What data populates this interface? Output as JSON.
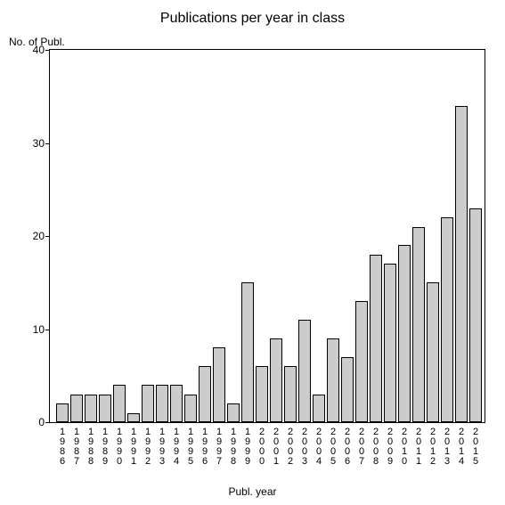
{
  "chart": {
    "type": "bar",
    "title": "Publications per year in class",
    "title_fontsize": 16,
    "ylabel": "No. of Publ.",
    "xlabel": "Publ. year",
    "label_fontsize": 12,
    "background_color": "#ffffff",
    "border_color": "#000000",
    "bar_color": "#cccccc",
    "bar_border_color": "#000000",
    "ylim": [
      0,
      40
    ],
    "yticks": [
      0,
      10,
      20,
      30,
      40
    ],
    "bar_width": 0.88,
    "categories": [
      "1986",
      "1987",
      "1988",
      "1989",
      "1990",
      "1991",
      "1992",
      "1993",
      "1994",
      "1995",
      "1996",
      "1997",
      "1998",
      "1999",
      "2000",
      "2001",
      "2002",
      "2003",
      "2004",
      "2005",
      "2006",
      "2007",
      "2008",
      "2009",
      "2010",
      "2011",
      "2012",
      "2013",
      "2014",
      "2015"
    ],
    "values": [
      2,
      3,
      3,
      3,
      4,
      1,
      4,
      4,
      4,
      3,
      6,
      8,
      2,
      15,
      6,
      9,
      6,
      11,
      3,
      9,
      7,
      13,
      18,
      17,
      19,
      21,
      15,
      22,
      34,
      23
    ]
  }
}
